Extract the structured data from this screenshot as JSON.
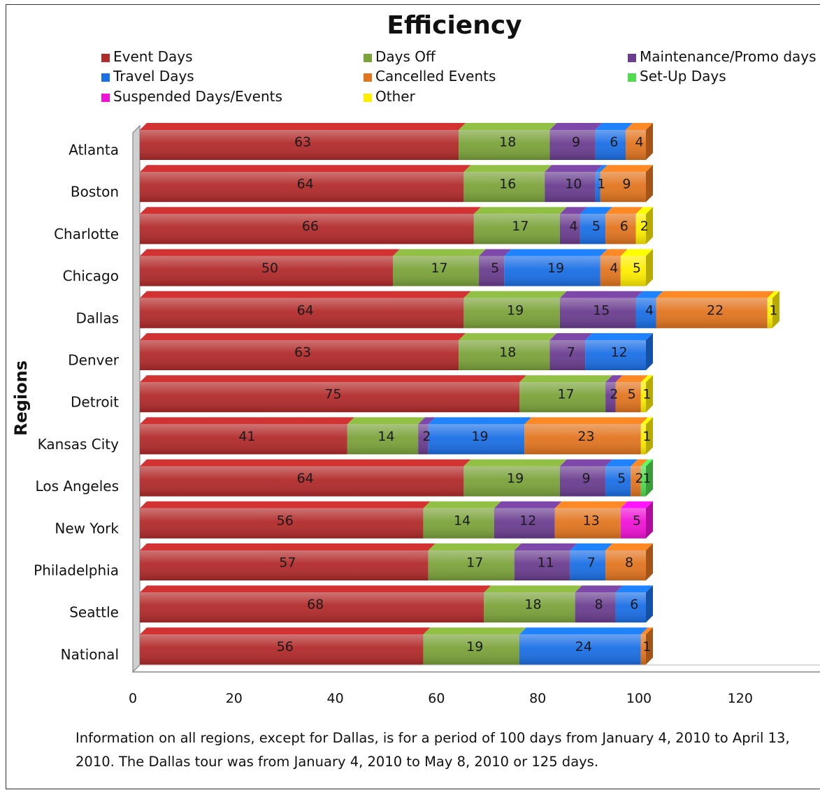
{
  "chart_data": {
    "type": "bar",
    "orientation": "horizontal",
    "stacked": true,
    "title": "Efficiency",
    "ylabel": "Regions",
    "xlabel": "",
    "xlim": [
      0,
      130
    ],
    "x_ticks": [
      0,
      20,
      40,
      60,
      80,
      100,
      120
    ],
    "legend_position": "top",
    "categories": [
      "Atlanta",
      "Boston",
      "Charlotte",
      "Chicago",
      "Dallas",
      "Denver",
      "Detroit",
      "Kansas City",
      "Los Angeles",
      "New York",
      "Philadelphia",
      "Seattle",
      "National"
    ],
    "series": [
      {
        "name": "Event Days",
        "color": "#b22a2a",
        "values": [
          63,
          64,
          66,
          50,
          64,
          63,
          75,
          41,
          64,
          56,
          57,
          68,
          56
        ]
      },
      {
        "name": "Days Off",
        "color": "#7ba33a",
        "values": [
          18,
          16,
          17,
          17,
          19,
          18,
          17,
          14,
          19,
          14,
          17,
          18,
          19
        ]
      },
      {
        "name": "Maintenance/Promo days",
        "color": "#6a3d8f",
        "values": [
          9,
          10,
          4,
          5,
          15,
          7,
          2,
          2,
          9,
          12,
          11,
          8,
          0
        ]
      },
      {
        "name": "Travel Days",
        "color": "#1a6fe6",
        "values": [
          6,
          1,
          5,
          19,
          4,
          12,
          0,
          19,
          5,
          0,
          7,
          6,
          24
        ]
      },
      {
        "name": "Cancelled Events",
        "color": "#e2751f",
        "values": [
          4,
          9,
          6,
          4,
          22,
          0,
          5,
          23,
          2,
          13,
          8,
          0,
          1
        ]
      },
      {
        "name": "Set-Up Days",
        "color": "#4fdc4f",
        "values": [
          0,
          0,
          0,
          0,
          0,
          0,
          0,
          0,
          1,
          0,
          0,
          0,
          0
        ]
      },
      {
        "name": "Suspended Days/Events",
        "color": "#f012d6",
        "values": [
          0,
          0,
          0,
          0,
          0,
          0,
          0,
          0,
          0,
          5,
          0,
          0,
          0
        ]
      },
      {
        "name": "Other",
        "color": "#ffee00",
        "values": [
          0,
          0,
          2,
          5,
          1,
          0,
          1,
          1,
          0,
          0,
          0,
          0,
          0
        ]
      }
    ],
    "legend_order": [
      "Event Days",
      "Days Off",
      "Maintenance/Promo days",
      "Travel Days",
      "Cancelled Events",
      "Set-Up Days",
      "Suspended Days/Events",
      "Other"
    ]
  },
  "footnote": "Information  on all regions, except for Dallas, is for  a period of 100 days from January 4, 2010 to April 13, 2010. The Dallas tour was from January 4, 2010 to May 8, 2010 or 125 days."
}
